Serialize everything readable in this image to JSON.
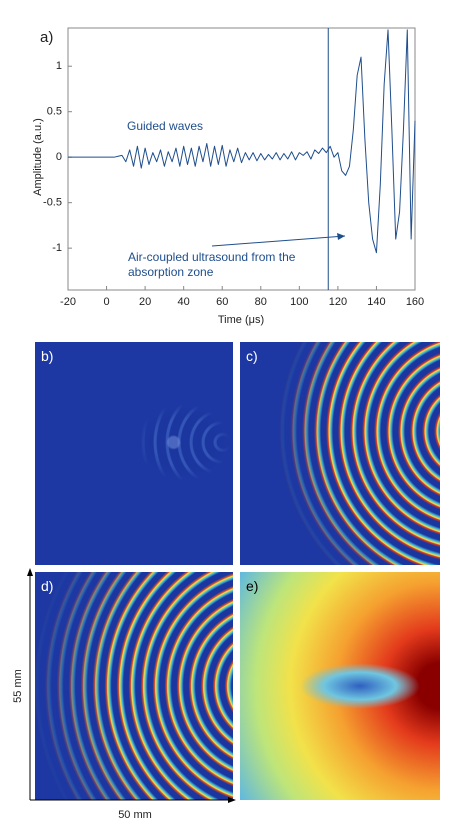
{
  "chart_data": {
    "type": "line",
    "panel_label": "a)",
    "x_label": "Time (μs)",
    "y_label": "Amplitude (a.u.)",
    "xlim": [
      -20,
      160
    ],
    "xticks": [
      -20,
      0,
      20,
      40,
      60,
      80,
      100,
      120,
      140,
      160
    ],
    "ylim": [
      -1.46,
      1.42
    ],
    "yticks": [
      -1,
      -0.5,
      0,
      0.5,
      1
    ],
    "vline": 115,
    "annotations": [
      "Guided waves",
      "Air-coupled ultrasound from the",
      "absorption zone"
    ],
    "series": [
      {
        "color": "#1f4e8c",
        "x": [
          -20,
          -18,
          -16,
          -14,
          -12,
          -10,
          -8,
          -6,
          -4,
          -2,
          0,
          2,
          4,
          6,
          8,
          10,
          12,
          14,
          16,
          18,
          20,
          22,
          24,
          26,
          28,
          30,
          32,
          34,
          36,
          38,
          40,
          42,
          44,
          46,
          48,
          50,
          52,
          54,
          56,
          58,
          60,
          62,
          64,
          66,
          68,
          70,
          72,
          74,
          76,
          78,
          80,
          82,
          84,
          86,
          88,
          90,
          92,
          94,
          96,
          98,
          100,
          102,
          104,
          106,
          108,
          110,
          112,
          114,
          116,
          118,
          120,
          122,
          124,
          126,
          128,
          130,
          132,
          134,
          136,
          138,
          140,
          142,
          144,
          146,
          148,
          150,
          152,
          154,
          156,
          158,
          160
        ],
        "values": [
          0,
          0,
          0,
          0,
          0,
          0,
          0,
          0,
          0,
          0,
          0,
          0,
          0,
          0.01,
          0.02,
          -0.05,
          0.08,
          -0.1,
          0.12,
          -0.12,
          0.1,
          -0.08,
          0.05,
          -0.05,
          0.08,
          -0.1,
          0.06,
          -0.05,
          0.1,
          -0.1,
          0.12,
          -0.08,
          0.1,
          -0.1,
          0.12,
          -0.05,
          0.15,
          -0.1,
          0.12,
          -0.08,
          0.13,
          -0.1,
          0.08,
          -0.05,
          0.1,
          -0.06,
          0.05,
          -0.03,
          0.05,
          -0.04,
          0.04,
          -0.03,
          0.03,
          -0.02,
          0.05,
          -0.03,
          0.04,
          -0.02,
          0.06,
          -0.03,
          0.05,
          0.02,
          0.06,
          -0.02,
          0.08,
          0.04,
          0.1,
          0.05,
          0.12,
          0,
          0.05,
          -0.15,
          -0.2,
          -0.1,
          0.3,
          0.9,
          1.1,
          0.2,
          -0.5,
          -0.9,
          -1.05,
          -0.3,
          0.8,
          1.4,
          0.3,
          -0.9,
          -0.6,
          0.3,
          1.4,
          -0.9,
          0.4
        ]
      }
    ]
  },
  "panels": {
    "b": "b)",
    "c": "c)",
    "d": "d)",
    "e": "e)",
    "height_label": "55 mm",
    "width_label": "50 mm"
  }
}
